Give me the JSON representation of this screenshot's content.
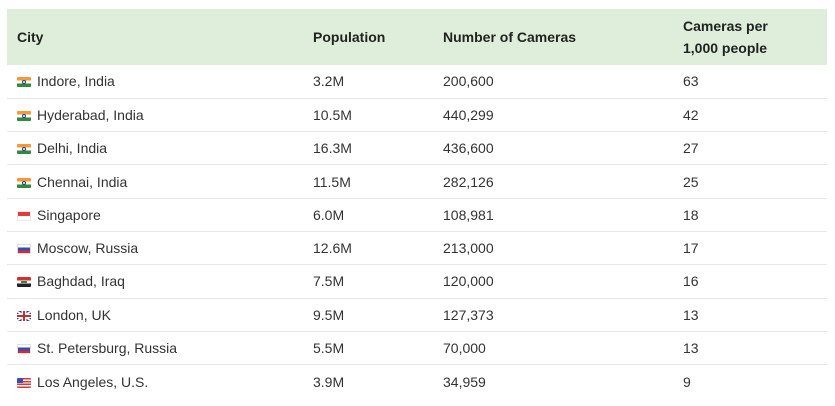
{
  "table": {
    "headers": {
      "city": "City",
      "population": "Population",
      "cameras": "Number of Cameras",
      "per_1000_line1": "Cameras per",
      "per_1000_line2": "1,000 people"
    },
    "rows": [
      {
        "flag": "india-flag-icon",
        "city": "Indore, India",
        "population": "3.2M",
        "cameras": "200,600",
        "per_1000": "63"
      },
      {
        "flag": "india-flag-icon",
        "city": "Hyderabad, India",
        "population": "10.5M",
        "cameras": "440,299",
        "per_1000": "42"
      },
      {
        "flag": "india-flag-icon",
        "city": "Delhi, India",
        "population": "16.3M",
        "cameras": "436,600",
        "per_1000": "27"
      },
      {
        "flag": "india-flag-icon",
        "city": "Chennai, India",
        "population": "11.5M",
        "cameras": "282,126",
        "per_1000": "25"
      },
      {
        "flag": "singapore-flag-icon",
        "city": "Singapore",
        "population": "6.0M",
        "cameras": "108,981",
        "per_1000": "18"
      },
      {
        "flag": "russia-flag-icon",
        "city": "Moscow, Russia",
        "population": "12.6M",
        "cameras": "213,000",
        "per_1000": "17"
      },
      {
        "flag": "iraq-flag-icon",
        "city": "Baghdad, Iraq",
        "population": "7.5M",
        "cameras": "120,000",
        "per_1000": "16"
      },
      {
        "flag": "uk-flag-icon",
        "city": "London, UK",
        "population": "9.5M",
        "cameras": "127,373",
        "per_1000": "13"
      },
      {
        "flag": "russia-flag-icon",
        "city": "St. Petersburg, Russia",
        "population": "5.5M",
        "cameras": "70,000",
        "per_1000": "13"
      },
      {
        "flag": "us-flag-icon",
        "city": "Los Angeles, U.S.",
        "population": "3.9M",
        "cameras": "34,959",
        "per_1000": "9"
      }
    ]
  },
  "colors": {
    "header_background": "#dfeeda",
    "row_divider": "#e6e6e6"
  }
}
